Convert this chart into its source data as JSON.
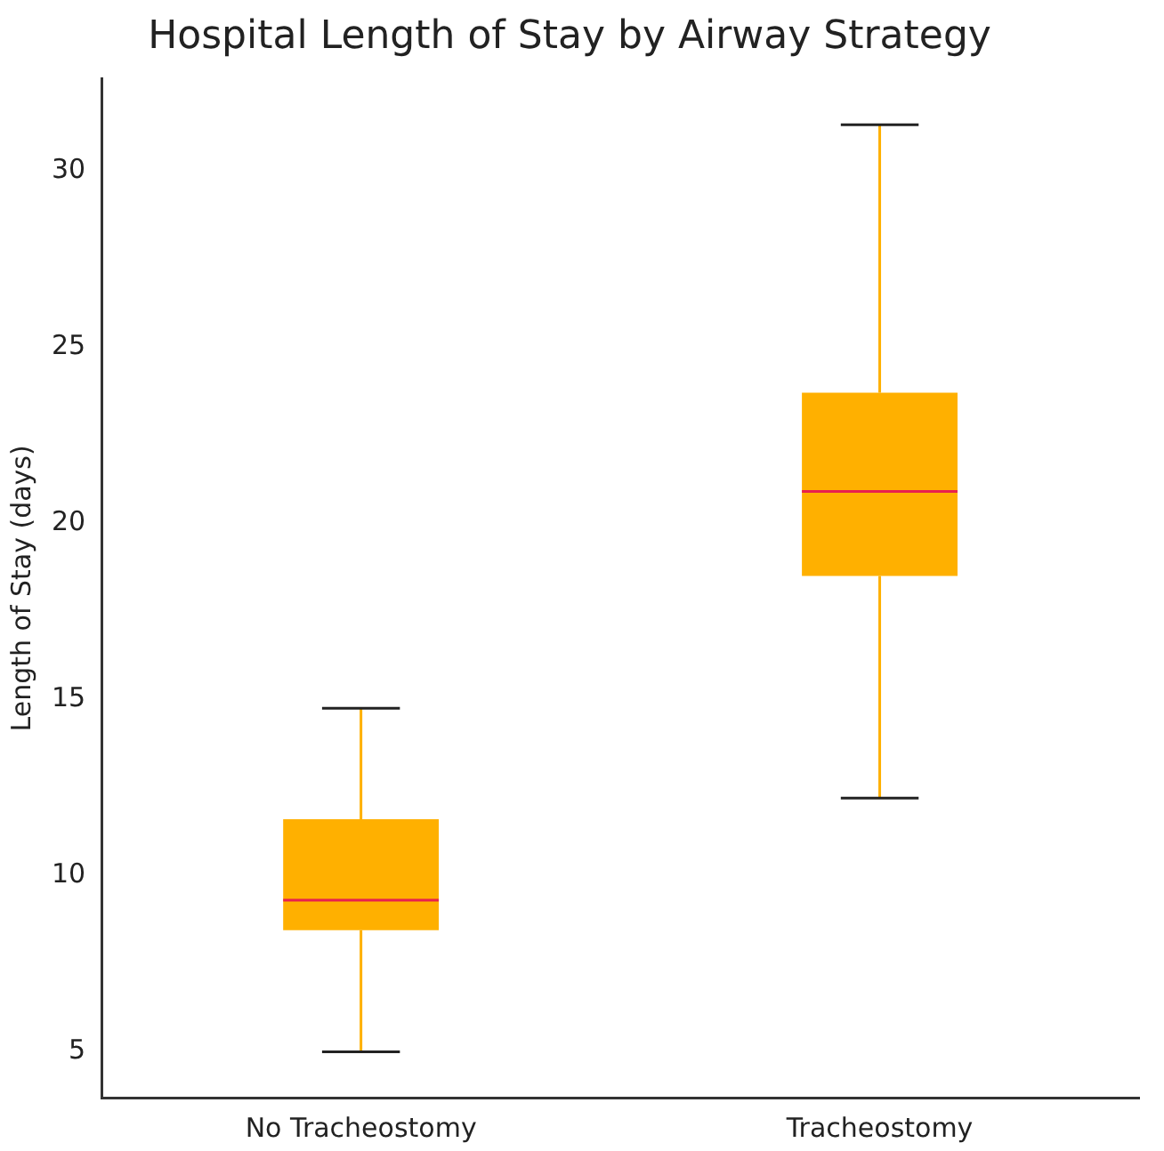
{
  "chart_data": {
    "type": "box",
    "title": "Hospital Length of Stay by Airway Strategy",
    "ylabel": "Length of Stay (days)",
    "categories": [
      "No Tracheostomy",
      "Tracheostomy"
    ],
    "color": "#ffb000",
    "boxes": [
      {
        "low": 5.0,
        "q1": 8.45,
        "median": 9.3,
        "q3": 11.6,
        "high": 14.75
      },
      {
        "low": 12.2,
        "q1": 18.5,
        "median": 20.9,
        "q3": 23.7,
        "high": 31.3
      }
    ],
    "ylim": [
      3.7,
      32.6
    ],
    "yticks": [
      5,
      10,
      15,
      20,
      25,
      30
    ],
    "grid": false,
    "legend": false
  }
}
